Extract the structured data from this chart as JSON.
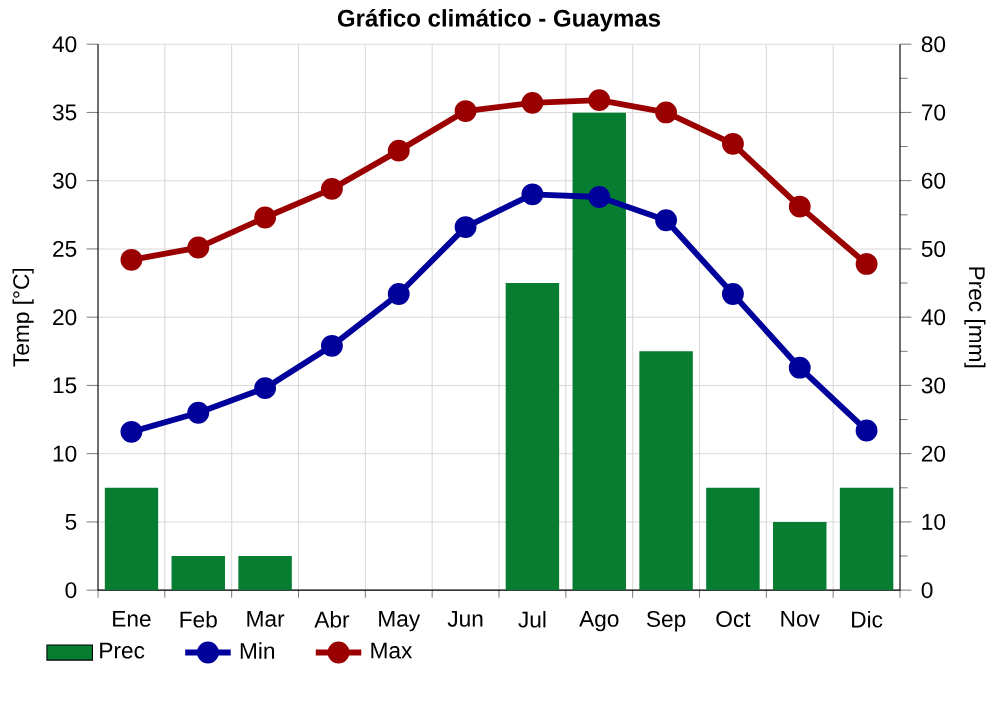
{
  "chart_data": {
    "type": "line",
    "title": "Gráfico climático - Guaymas",
    "ylabel": "Temp [°C]",
    "y2label": "Prec [mm]",
    "categories": [
      "Ene",
      "Feb",
      "Mar",
      "Abr",
      "May",
      "Jun",
      "Jul",
      "Ago",
      "Sep",
      "Oct",
      "Nov",
      "Dic"
    ],
    "series": [
      {
        "name": "Prec",
        "type": "bar",
        "axis": "y2",
        "color": "#077d32",
        "values": [
          15,
          5,
          5,
          0,
          0,
          0,
          45,
          70,
          35,
          15,
          10,
          15
        ]
      },
      {
        "name": "Min",
        "color": "#00009b",
        "values": [
          11.6,
          13.0,
          14.8,
          17.9,
          21.7,
          26.6,
          29.0,
          28.8,
          27.1,
          21.7,
          16.3,
          11.7
        ]
      },
      {
        "name": "Max",
        "color": "#9b0000",
        "values": [
          24.2,
          25.1,
          27.3,
          29.4,
          32.2,
          35.1,
          35.7,
          35.9,
          35.0,
          32.7,
          28.1,
          23.9
        ]
      }
    ],
    "ylim": [
      0,
      40
    ],
    "yticks": [
      0,
      5,
      10,
      15,
      20,
      25,
      30,
      35,
      40
    ],
    "y2lim": [
      0,
      80
    ],
    "y2ticks": [
      0,
      {
        "value": 5,
        "label": null
      },
      10,
      {
        "value": 15,
        "label": null
      },
      20,
      {
        "value": 25,
        "label": null
      },
      30,
      {
        "value": 35,
        "label": null
      },
      40,
      {
        "value": 45,
        "label": null
      },
      50,
      {
        "value": 55,
        "label": null
      },
      60,
      {
        "value": 65,
        "label": null
      },
      70,
      {
        "value": 75,
        "label": null
      },
      80
    ],
    "grid": true,
    "legend": "bottom left",
    "marker": "circle"
  }
}
